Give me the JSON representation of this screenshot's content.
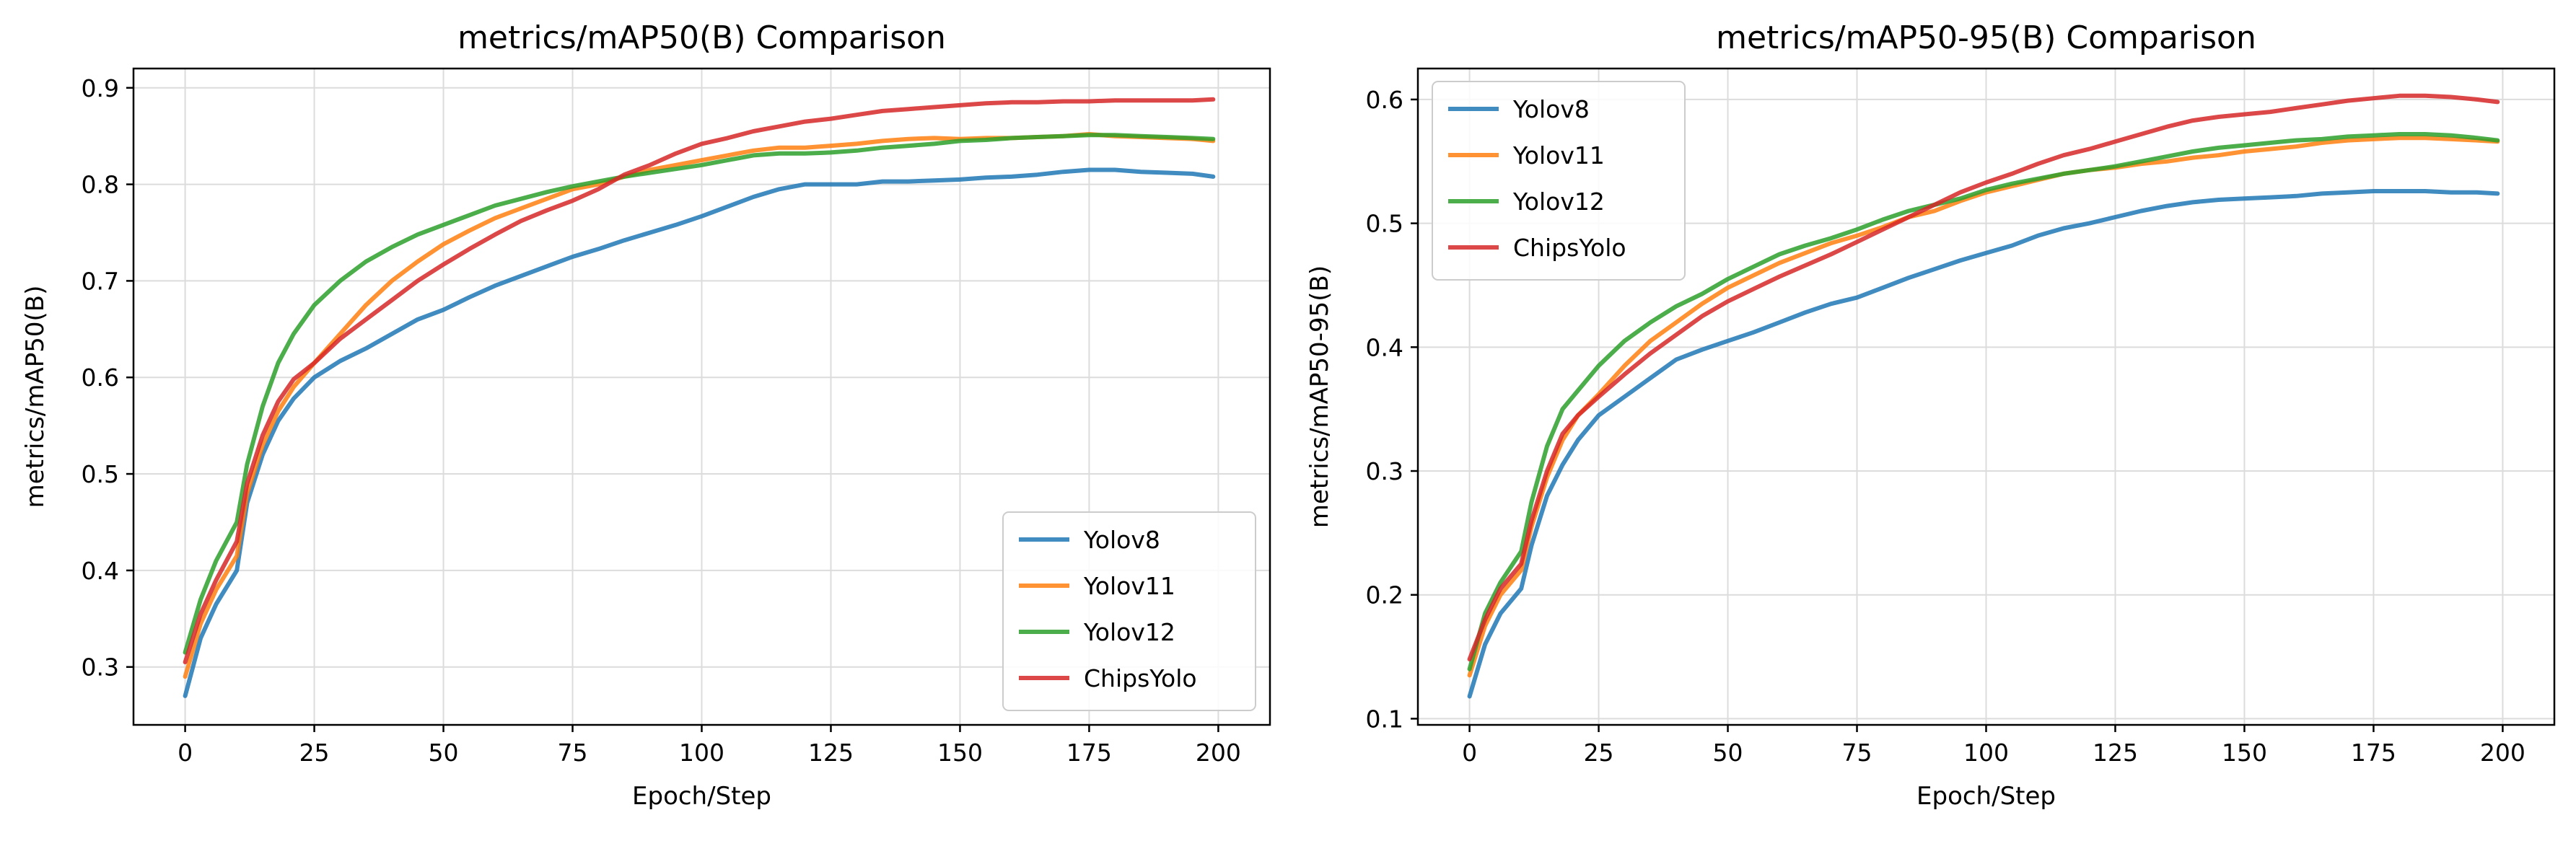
{
  "chart_data": [
    {
      "type": "line",
      "title": "metrics/mAP50(B) Comparison",
      "xlabel": "Epoch/Step",
      "ylabel": "metrics/mAP50(B)",
      "xlim": [
        -10,
        210
      ],
      "ylim": [
        0.24,
        0.92
      ],
      "xticks": [
        "0",
        "25",
        "50",
        "75",
        "100",
        "125",
        "150",
        "175",
        "200"
      ],
      "yticks": [
        "0.3",
        "0.4",
        "0.5",
        "0.6",
        "0.7",
        "0.8",
        "0.9"
      ],
      "grid": true,
      "legend_position": "bottom-right",
      "x": [
        0,
        3,
        6,
        10,
        12,
        15,
        18,
        21,
        25,
        30,
        35,
        40,
        45,
        50,
        55,
        60,
        65,
        70,
        75,
        80,
        85,
        90,
        95,
        100,
        105,
        110,
        115,
        120,
        125,
        130,
        135,
        140,
        145,
        150,
        155,
        160,
        165,
        170,
        175,
        180,
        185,
        190,
        195,
        199
      ],
      "series": [
        {
          "name": "Yolov8",
          "color": "#1f77b4",
          "values": [
            0.27,
            0.33,
            0.365,
            0.4,
            0.47,
            0.52,
            0.555,
            0.578,
            0.6,
            0.617,
            0.63,
            0.645,
            0.66,
            0.67,
            0.683,
            0.695,
            0.705,
            0.715,
            0.725,
            0.733,
            0.742,
            0.75,
            0.758,
            0.767,
            0.777,
            0.787,
            0.795,
            0.8,
            0.8,
            0.8,
            0.803,
            0.803,
            0.804,
            0.805,
            0.807,
            0.808,
            0.81,
            0.813,
            0.815,
            0.815,
            0.813,
            0.812,
            0.811,
            0.808
          ]
        },
        {
          "name": "Yolov11",
          "color": "#ff7f0e",
          "values": [
            0.29,
            0.345,
            0.38,
            0.415,
            0.48,
            0.53,
            0.565,
            0.59,
            0.615,
            0.645,
            0.675,
            0.7,
            0.72,
            0.738,
            0.752,
            0.765,
            0.775,
            0.785,
            0.795,
            0.8,
            0.808,
            0.815,
            0.82,
            0.825,
            0.83,
            0.835,
            0.838,
            0.838,
            0.84,
            0.842,
            0.845,
            0.847,
            0.848,
            0.847,
            0.848,
            0.848,
            0.849,
            0.85,
            0.852,
            0.85,
            0.849,
            0.848,
            0.847,
            0.845
          ]
        },
        {
          "name": "Yolov12",
          "color": "#2ca02c",
          "values": [
            0.315,
            0.37,
            0.41,
            0.45,
            0.51,
            0.57,
            0.615,
            0.645,
            0.675,
            0.7,
            0.72,
            0.735,
            0.748,
            0.758,
            0.768,
            0.778,
            0.785,
            0.792,
            0.798,
            0.803,
            0.808,
            0.812,
            0.816,
            0.82,
            0.825,
            0.83,
            0.832,
            0.832,
            0.833,
            0.835,
            0.838,
            0.84,
            0.842,
            0.845,
            0.846,
            0.848,
            0.849,
            0.85,
            0.851,
            0.851,
            0.85,
            0.849,
            0.848,
            0.847
          ]
        },
        {
          "name": "ChipsYolo",
          "color": "#d62728",
          "values": [
            0.305,
            0.355,
            0.39,
            0.43,
            0.49,
            0.54,
            0.575,
            0.598,
            0.615,
            0.64,
            0.66,
            0.68,
            0.7,
            0.717,
            0.733,
            0.748,
            0.762,
            0.773,
            0.783,
            0.795,
            0.81,
            0.82,
            0.832,
            0.842,
            0.848,
            0.855,
            0.86,
            0.865,
            0.868,
            0.872,
            0.876,
            0.878,
            0.88,
            0.882,
            0.884,
            0.885,
            0.885,
            0.886,
            0.886,
            0.887,
            0.887,
            0.887,
            0.887,
            0.888
          ]
        }
      ]
    },
    {
      "type": "line",
      "title": "metrics/mAP50-95(B) Comparison",
      "xlabel": "Epoch/Step",
      "ylabel": "metrics/mAP50-95(B)",
      "xlim": [
        -10,
        210
      ],
      "ylim": [
        0.095,
        0.625
      ],
      "xticks": [
        "0",
        "25",
        "50",
        "75",
        "100",
        "125",
        "150",
        "175",
        "200"
      ],
      "yticks": [
        "0.1",
        "0.2",
        "0.3",
        "0.4",
        "0.5",
        "0.6"
      ],
      "grid": true,
      "legend_position": "top-left",
      "x": [
        0,
        3,
        6,
        10,
        12,
        15,
        18,
        21,
        25,
        30,
        35,
        40,
        45,
        50,
        55,
        60,
        65,
        70,
        75,
        80,
        85,
        90,
        95,
        100,
        105,
        110,
        115,
        120,
        125,
        130,
        135,
        140,
        145,
        150,
        155,
        160,
        165,
        170,
        175,
        180,
        185,
        190,
        195,
        199
      ],
      "series": [
        {
          "name": "Yolov8",
          "color": "#1f77b4",
          "values": [
            0.118,
            0.16,
            0.185,
            0.205,
            0.24,
            0.28,
            0.305,
            0.325,
            0.345,
            0.36,
            0.375,
            0.39,
            0.398,
            0.405,
            0.412,
            0.42,
            0.428,
            0.435,
            0.44,
            0.448,
            0.456,
            0.463,
            0.47,
            0.476,
            0.482,
            0.49,
            0.496,
            0.5,
            0.505,
            0.51,
            0.514,
            0.517,
            0.519,
            0.52,
            0.521,
            0.522,
            0.524,
            0.525,
            0.526,
            0.526,
            0.526,
            0.525,
            0.525,
            0.524
          ]
        },
        {
          "name": "Yolov11",
          "color": "#ff7f0e",
          "values": [
            0.135,
            0.175,
            0.2,
            0.22,
            0.255,
            0.295,
            0.325,
            0.345,
            0.362,
            0.385,
            0.405,
            0.42,
            0.435,
            0.448,
            0.458,
            0.468,
            0.476,
            0.484,
            0.49,
            0.497,
            0.505,
            0.51,
            0.518,
            0.525,
            0.53,
            0.535,
            0.54,
            0.543,
            0.545,
            0.548,
            0.55,
            0.553,
            0.555,
            0.558,
            0.56,
            0.562,
            0.565,
            0.567,
            0.568,
            0.569,
            0.569,
            0.568,
            0.567,
            0.566
          ]
        },
        {
          "name": "Yolov12",
          "color": "#2ca02c",
          "values": [
            0.14,
            0.185,
            0.21,
            0.235,
            0.275,
            0.32,
            0.35,
            0.365,
            0.385,
            0.405,
            0.42,
            0.433,
            0.443,
            0.455,
            0.465,
            0.475,
            0.482,
            0.488,
            0.495,
            0.503,
            0.51,
            0.515,
            0.52,
            0.527,
            0.532,
            0.536,
            0.54,
            0.543,
            0.546,
            0.55,
            0.554,
            0.558,
            0.561,
            0.563,
            0.565,
            0.567,
            0.568,
            0.57,
            0.571,
            0.572,
            0.572,
            0.571,
            0.569,
            0.567
          ]
        },
        {
          "name": "ChipsYolo",
          "color": "#d62728",
          "values": [
            0.148,
            0.18,
            0.205,
            0.225,
            0.26,
            0.3,
            0.33,
            0.345,
            0.36,
            0.378,
            0.395,
            0.41,
            0.425,
            0.437,
            0.447,
            0.457,
            0.466,
            0.475,
            0.485,
            0.495,
            0.505,
            0.515,
            0.525,
            0.533,
            0.54,
            0.548,
            0.555,
            0.56,
            0.566,
            0.572,
            0.578,
            0.583,
            0.586,
            0.588,
            0.59,
            0.593,
            0.596,
            0.599,
            0.601,
            0.603,
            0.603,
            0.602,
            0.6,
            0.598
          ]
        }
      ]
    }
  ]
}
